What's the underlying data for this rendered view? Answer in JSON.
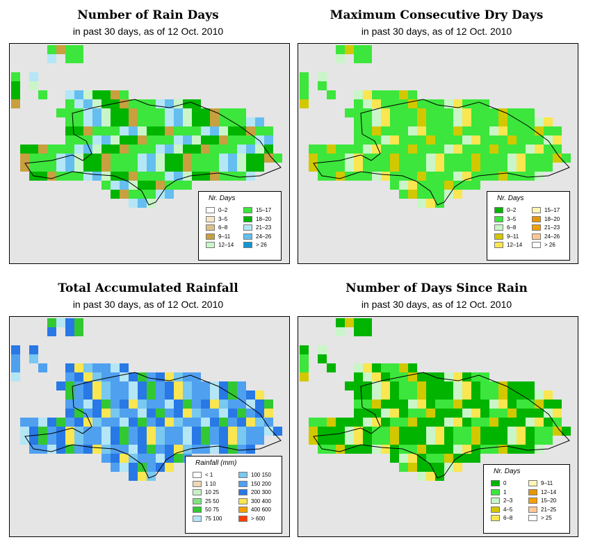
{
  "panels": [
    {
      "id": "rain-days",
      "title": "Number of Rain Days",
      "subtitle": "in past 30 days, as of  12 Oct. 2010",
      "legend": {
        "title": "Nr. Days",
        "items": [
          {
            "label": "0–2",
            "color": "#ffffff"
          },
          {
            "label": "3–5",
            "color": "#f5e6c8"
          },
          {
            "label": "6–8",
            "color": "#ddc08c"
          },
          {
            "label": "9–11",
            "color": "#c8a040"
          },
          {
            "label": "12–14",
            "color": "#c9f5c9"
          },
          {
            "label": "15–17",
            "color": "#3ce63c"
          },
          {
            "label": "18–20",
            "color": "#00b400"
          },
          {
            "label": "21–23",
            "color": "#b4e6f5"
          },
          {
            "label": "24–26",
            "color": "#64bef0"
          },
          {
            "label": "> 26",
            "color": "#1496d2"
          }
        ]
      }
    },
    {
      "id": "max-dry-days",
      "title": "Maximum Consecutive Dry Days",
      "subtitle": "in past 30 days, as of  12 Oct. 2010",
      "legend": {
        "title": "Nr. Days",
        "items": [
          {
            "label": "0–2",
            "color": "#00b400"
          },
          {
            "label": "3–5",
            "color": "#3ce63c"
          },
          {
            "label": "6–8",
            "color": "#c9f5c9"
          },
          {
            "label": "9–11",
            "color": "#d2c800"
          },
          {
            "label": "12–14",
            "color": "#fae650"
          },
          {
            "label": "15–17",
            "color": "#fff5b4"
          },
          {
            "label": "18–20",
            "color": "#e69600"
          },
          {
            "label": "21–23",
            "color": "#f5a000"
          },
          {
            "label": "24–26",
            "color": "#ffc896"
          },
          {
            "label": "> 26",
            "color": "#ffffff"
          }
        ]
      }
    },
    {
      "id": "total-rainfall",
      "title": "Total Accumulated Rainfall",
      "subtitle": "in past 30 days, as of  12 Oct. 2010",
      "legend": {
        "title": "Rainfall (mm)",
        "items": [
          {
            "label": "< 1",
            "color": "#ffffff"
          },
          {
            "label": "1    10",
            "color": "#f0d7b4"
          },
          {
            "label": "10    25",
            "color": "#c8f0c8"
          },
          {
            "label": "25    50",
            "color": "#82e182"
          },
          {
            "label": "50    75",
            "color": "#32c832"
          },
          {
            "label": "75  100",
            "color": "#b4e6f5"
          },
          {
            "label": "100  150",
            "color": "#78c8f0"
          },
          {
            "label": "150  200",
            "color": "#50a0f0"
          },
          {
            "label": "200  300",
            "color": "#2878e6"
          },
          {
            "label": "300  400",
            "color": "#fae650"
          },
          {
            "label": "400  600",
            "color": "#f5a000"
          },
          {
            "label": "> 600",
            "color": "#ff3c00"
          }
        ]
      }
    },
    {
      "id": "days-since-rain",
      "title": "Number of Days Since Rain",
      "subtitle": "in past 30 days, as of  12 Oct. 2010",
      "legend": {
        "title": "Nr. Days",
        "items": [
          {
            "label": "0",
            "color": "#00b400"
          },
          {
            "label": "1",
            "color": "#3ce63c"
          },
          {
            "label": "2–3",
            "color": "#c9f5c9"
          },
          {
            "label": "4–5",
            "color": "#d2c800"
          },
          {
            "label": "6–8",
            "color": "#fae650"
          },
          {
            "label": "9–11",
            "color": "#fff5b4"
          },
          {
            "label": "12–14",
            "color": "#e69600"
          },
          {
            "label": "15–20",
            "color": "#f5a000"
          },
          {
            "label": "21–25",
            "color": "#ffc896"
          },
          {
            "label": "> 25",
            "color": "#ffffff"
          }
        ]
      }
    }
  ]
}
